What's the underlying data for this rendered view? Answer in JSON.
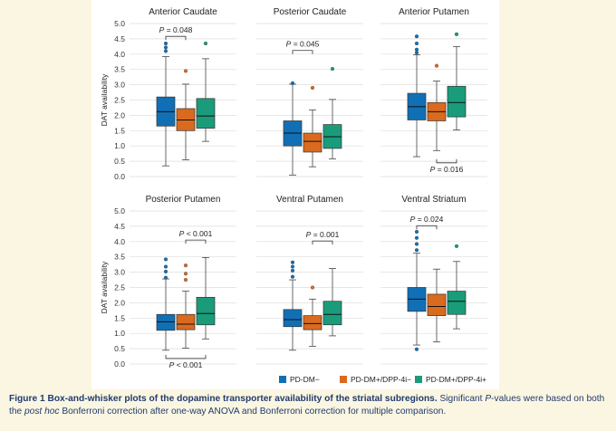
{
  "figure": {
    "caption_label": "Figure 1 Box-and-whisker plots of the dopamine transporter availability of the striatal subregions.",
    "caption_text_1": " Significant ",
    "caption_p": "P",
    "caption_text_2": "-values were based on both the ",
    "caption_posthoc": "post hoc",
    "caption_text_3": " Bonferroni correction after one-way ANOVA and Bonferroni correction for multiple comparison.",
    "background": "#fbf6e1"
  },
  "legend": {
    "position": "bottom-right",
    "items": [
      {
        "name": "PD-DM−",
        "color": "#1170b5"
      },
      {
        "name": "PD-DM+/DPP-4i−",
        "color": "#d96a1e"
      },
      {
        "name": "PD-DM+/DPP-4i+",
        "color": "#1a9c7a"
      }
    ]
  },
  "chart_data": [
    {
      "type": "box",
      "title": "Anterior Caudate",
      "ylabel": "DAT availability",
      "ylim": [
        0,
        5
      ],
      "yticks": [
        "0.0",
        "0.5",
        "1.0",
        "1.5",
        "2.0",
        "2.5",
        "3.0",
        "3.5",
        "4.0",
        "4.5",
        "5.0"
      ],
      "grid": true,
      "boxes": [
        {
          "min": 0.35,
          "q1": 1.65,
          "median": 2.12,
          "q3": 2.6,
          "max": 3.92,
          "outliers": [
            4.1,
            4.22,
            4.35
          ]
        },
        {
          "min": 0.55,
          "q1": 1.5,
          "median": 1.85,
          "q3": 2.22,
          "max": 3.02,
          "outliers": [
            3.45
          ]
        },
        {
          "min": 1.15,
          "q1": 1.58,
          "median": 1.98,
          "q3": 2.55,
          "max": 3.85,
          "outliers": [
            4.35
          ]
        }
      ],
      "annotations": [
        {
          "label": "P = 0.048",
          "from": 0,
          "to": 1,
          "y": 4.58,
          "side": "top"
        }
      ]
    },
    {
      "type": "box",
      "title": "Posterior Caudate",
      "ylabel": "",
      "ylim": [
        0,
        5
      ],
      "yticks": [],
      "grid": true,
      "boxes": [
        {
          "min": 0.05,
          "q1": 1.0,
          "median": 1.42,
          "q3": 1.82,
          "max": 3.02,
          "outliers": [
            3.05
          ]
        },
        {
          "min": 0.32,
          "q1": 0.8,
          "median": 1.15,
          "q3": 1.42,
          "max": 2.18,
          "outliers": [
            2.9
          ]
        },
        {
          "min": 0.58,
          "q1": 0.92,
          "median": 1.3,
          "q3": 1.7,
          "max": 2.52,
          "outliers": [
            3.52
          ]
        }
      ],
      "annotations": [
        {
          "label": "P = 0.045",
          "from": 0,
          "to": 1,
          "y": 4.12,
          "side": "top"
        }
      ]
    },
    {
      "type": "box",
      "title": "Anterior Putamen",
      "ylabel": "",
      "ylim": [
        0,
        5
      ],
      "yticks": [],
      "grid": true,
      "boxes": [
        {
          "min": 0.65,
          "q1": 1.85,
          "median": 2.28,
          "q3": 2.72,
          "max": 3.98,
          "outliers": [
            4.05,
            4.15,
            4.35,
            4.58
          ]
        },
        {
          "min": 0.85,
          "q1": 1.82,
          "median": 2.12,
          "q3": 2.42,
          "max": 3.12,
          "outliers": [
            3.62
          ]
        },
        {
          "min": 1.52,
          "q1": 1.95,
          "median": 2.42,
          "q3": 2.95,
          "max": 4.25,
          "outliers": [
            4.65
          ]
        }
      ],
      "annotations": [
        {
          "label": "P = 0.016",
          "from": 1,
          "to": 2,
          "y": 0.45,
          "side": "bottom"
        }
      ]
    },
    {
      "type": "box",
      "title": "Posterior Putamen",
      "ylabel": "DAT availability",
      "ylim": [
        0,
        5
      ],
      "yticks": [
        "0.0",
        "0.5",
        "1.0",
        "1.5",
        "2.0",
        "2.5",
        "3.0",
        "3.5",
        "4.0",
        "4.5",
        "5.0"
      ],
      "grid": true,
      "boxes": [
        {
          "min": 0.45,
          "q1": 1.1,
          "median": 1.38,
          "q3": 1.62,
          "max": 2.78,
          "outliers": [
            2.82,
            3.02,
            3.18,
            3.42
          ]
        },
        {
          "min": 0.52,
          "q1": 1.12,
          "median": 1.3,
          "q3": 1.62,
          "max": 2.38,
          "outliers": [
            2.75,
            2.95,
            3.22
          ]
        },
        {
          "min": 0.82,
          "q1": 1.28,
          "median": 1.65,
          "q3": 2.18,
          "max": 3.48,
          "outliers": []
        }
      ],
      "annotations": [
        {
          "label": "P < 0.001",
          "from": 1,
          "to": 2,
          "y": 4.05,
          "side": "top"
        },
        {
          "label": "P < 0.001",
          "from": 0,
          "to": 2,
          "y": 0.18,
          "side": "bottom"
        }
      ]
    },
    {
      "type": "box",
      "title": "Ventral Putamen",
      "ylabel": "",
      "ylim": [
        0,
        5
      ],
      "yticks": [],
      "grid": true,
      "boxes": [
        {
          "min": 0.45,
          "q1": 1.22,
          "median": 1.45,
          "q3": 1.78,
          "max": 2.75,
          "outliers": [
            2.85,
            3.05,
            3.18,
            3.32
          ]
        },
        {
          "min": 0.58,
          "q1": 1.12,
          "median": 1.32,
          "q3": 1.58,
          "max": 2.12,
          "outliers": [
            2.5
          ]
        },
        {
          "min": 0.92,
          "q1": 1.28,
          "median": 1.62,
          "q3": 2.05,
          "max": 3.12,
          "outliers": []
        }
      ],
      "annotations": [
        {
          "label": "P = 0.001",
          "from": 1,
          "to": 2,
          "y": 4.02,
          "side": "top"
        }
      ]
    },
    {
      "type": "box",
      "title": "Ventral Striatum",
      "ylabel": "",
      "ylim": [
        0,
        5
      ],
      "yticks": [],
      "grid": true,
      "boxes": [
        {
          "min": 0.62,
          "q1": 1.72,
          "median": 2.12,
          "q3": 2.5,
          "max": 3.62,
          "outliers": [
            0.48,
            3.72,
            3.92,
            4.12,
            4.32
          ]
        },
        {
          "min": 0.72,
          "q1": 1.58,
          "median": 1.88,
          "q3": 2.28,
          "max": 3.1,
          "outliers": []
        },
        {
          "min": 1.15,
          "q1": 1.62,
          "median": 2.05,
          "q3": 2.38,
          "max": 3.35,
          "outliers": [
            3.85
          ]
        }
      ],
      "annotations": [
        {
          "label": "P = 0.024",
          "from": 0,
          "to": 1,
          "y": 4.52,
          "side": "top"
        }
      ]
    }
  ]
}
